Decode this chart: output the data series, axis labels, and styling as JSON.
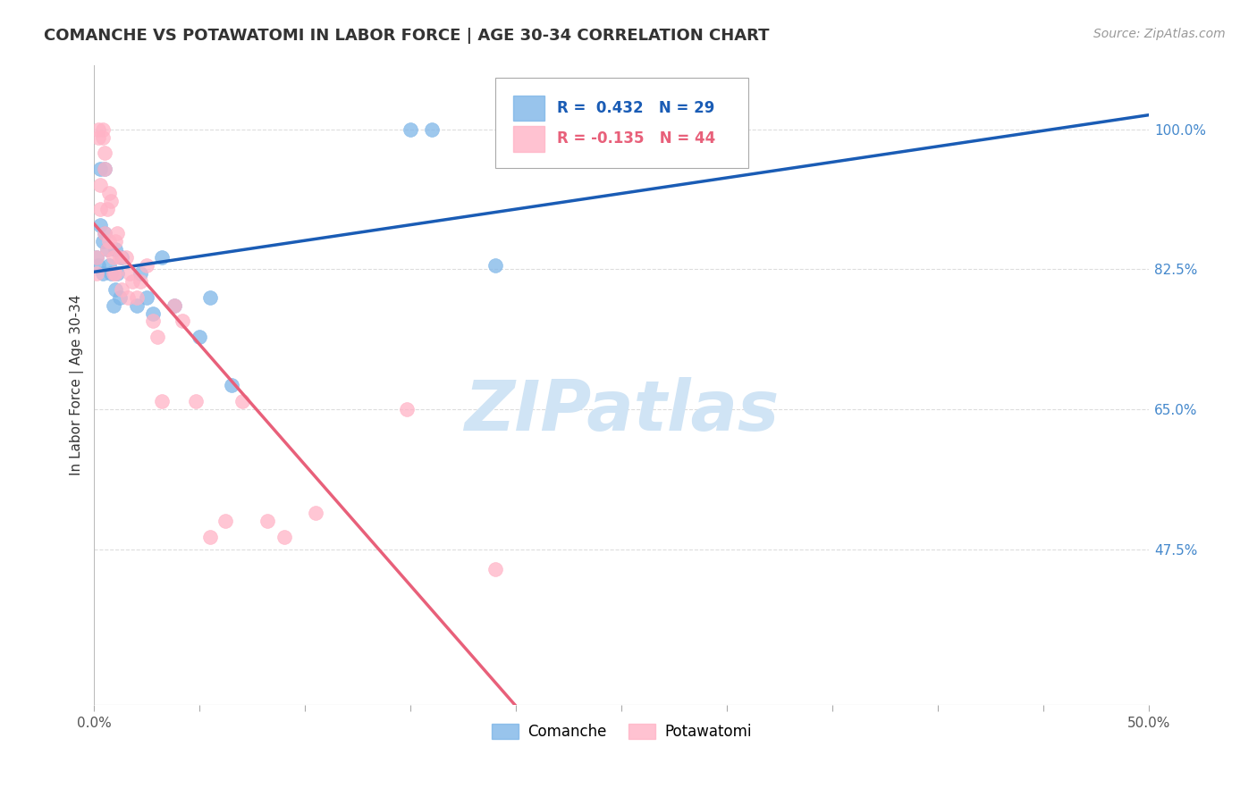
{
  "title": "COMANCHE VS POTAWATOMI IN LABOR FORCE | AGE 30-34 CORRELATION CHART",
  "source": "Source: ZipAtlas.com",
  "ylabel": "In Labor Force | Age 30-34",
  "ytick_vals": [
    1.0,
    0.825,
    0.65,
    0.475
  ],
  "ytick_labels": [
    "100.0%",
    "82.5%",
    "65.0%",
    "47.5%"
  ],
  "xlim": [
    0.0,
    0.5
  ],
  "ylim": [
    0.28,
    1.08
  ],
  "comanche_x": [
    0.001,
    0.002,
    0.003,
    0.003,
    0.004,
    0.004,
    0.005,
    0.005,
    0.006,
    0.007,
    0.008,
    0.009,
    0.01,
    0.01,
    0.011,
    0.012,
    0.013,
    0.02,
    0.022,
    0.025,
    0.028,
    0.032,
    0.038,
    0.05,
    0.055,
    0.065,
    0.15,
    0.16,
    0.19
  ],
  "comanche_y": [
    0.84,
    0.83,
    0.95,
    0.88,
    0.86,
    0.82,
    0.95,
    0.87,
    0.85,
    0.83,
    0.82,
    0.78,
    0.85,
    0.8,
    0.82,
    0.79,
    0.84,
    0.78,
    0.82,
    0.79,
    0.77,
    0.84,
    0.78,
    0.74,
    0.79,
    0.68,
    1.0,
    1.0,
    0.83
  ],
  "potawatomi_x": [
    0.001,
    0.001,
    0.002,
    0.002,
    0.003,
    0.003,
    0.004,
    0.004,
    0.005,
    0.005,
    0.005,
    0.006,
    0.006,
    0.007,
    0.007,
    0.008,
    0.009,
    0.009,
    0.01,
    0.01,
    0.011,
    0.012,
    0.013,
    0.015,
    0.016,
    0.017,
    0.018,
    0.02,
    0.022,
    0.025,
    0.028,
    0.03,
    0.032,
    0.038,
    0.042,
    0.048,
    0.055,
    0.062,
    0.07,
    0.082,
    0.09,
    0.105,
    0.148,
    0.19
  ],
  "potawatomi_y": [
    0.84,
    0.82,
    1.0,
    0.99,
    0.93,
    0.9,
    1.0,
    0.99,
    0.97,
    0.95,
    0.87,
    0.9,
    0.85,
    0.92,
    0.86,
    0.91,
    0.84,
    0.82,
    0.86,
    0.82,
    0.87,
    0.84,
    0.8,
    0.84,
    0.79,
    0.82,
    0.81,
    0.79,
    0.81,
    0.83,
    0.76,
    0.74,
    0.66,
    0.78,
    0.76,
    0.66,
    0.49,
    0.51,
    0.66,
    0.51,
    0.49,
    0.52,
    0.65,
    0.45
  ],
  "blue_color": "#7EB6E8",
  "pink_color": "#FFB3C6",
  "blue_line_color": "#1A5CB5",
  "pink_line_color": "#E8607A",
  "grid_color": "#DDDDDD",
  "watermark_text": "ZIPatlas",
  "watermark_color": "#D0E4F5",
  "background": "#FFFFFF",
  "title_fontsize": 13,
  "axis_label_fontsize": 11,
  "tick_fontsize": 11,
  "source_fontsize": 10
}
